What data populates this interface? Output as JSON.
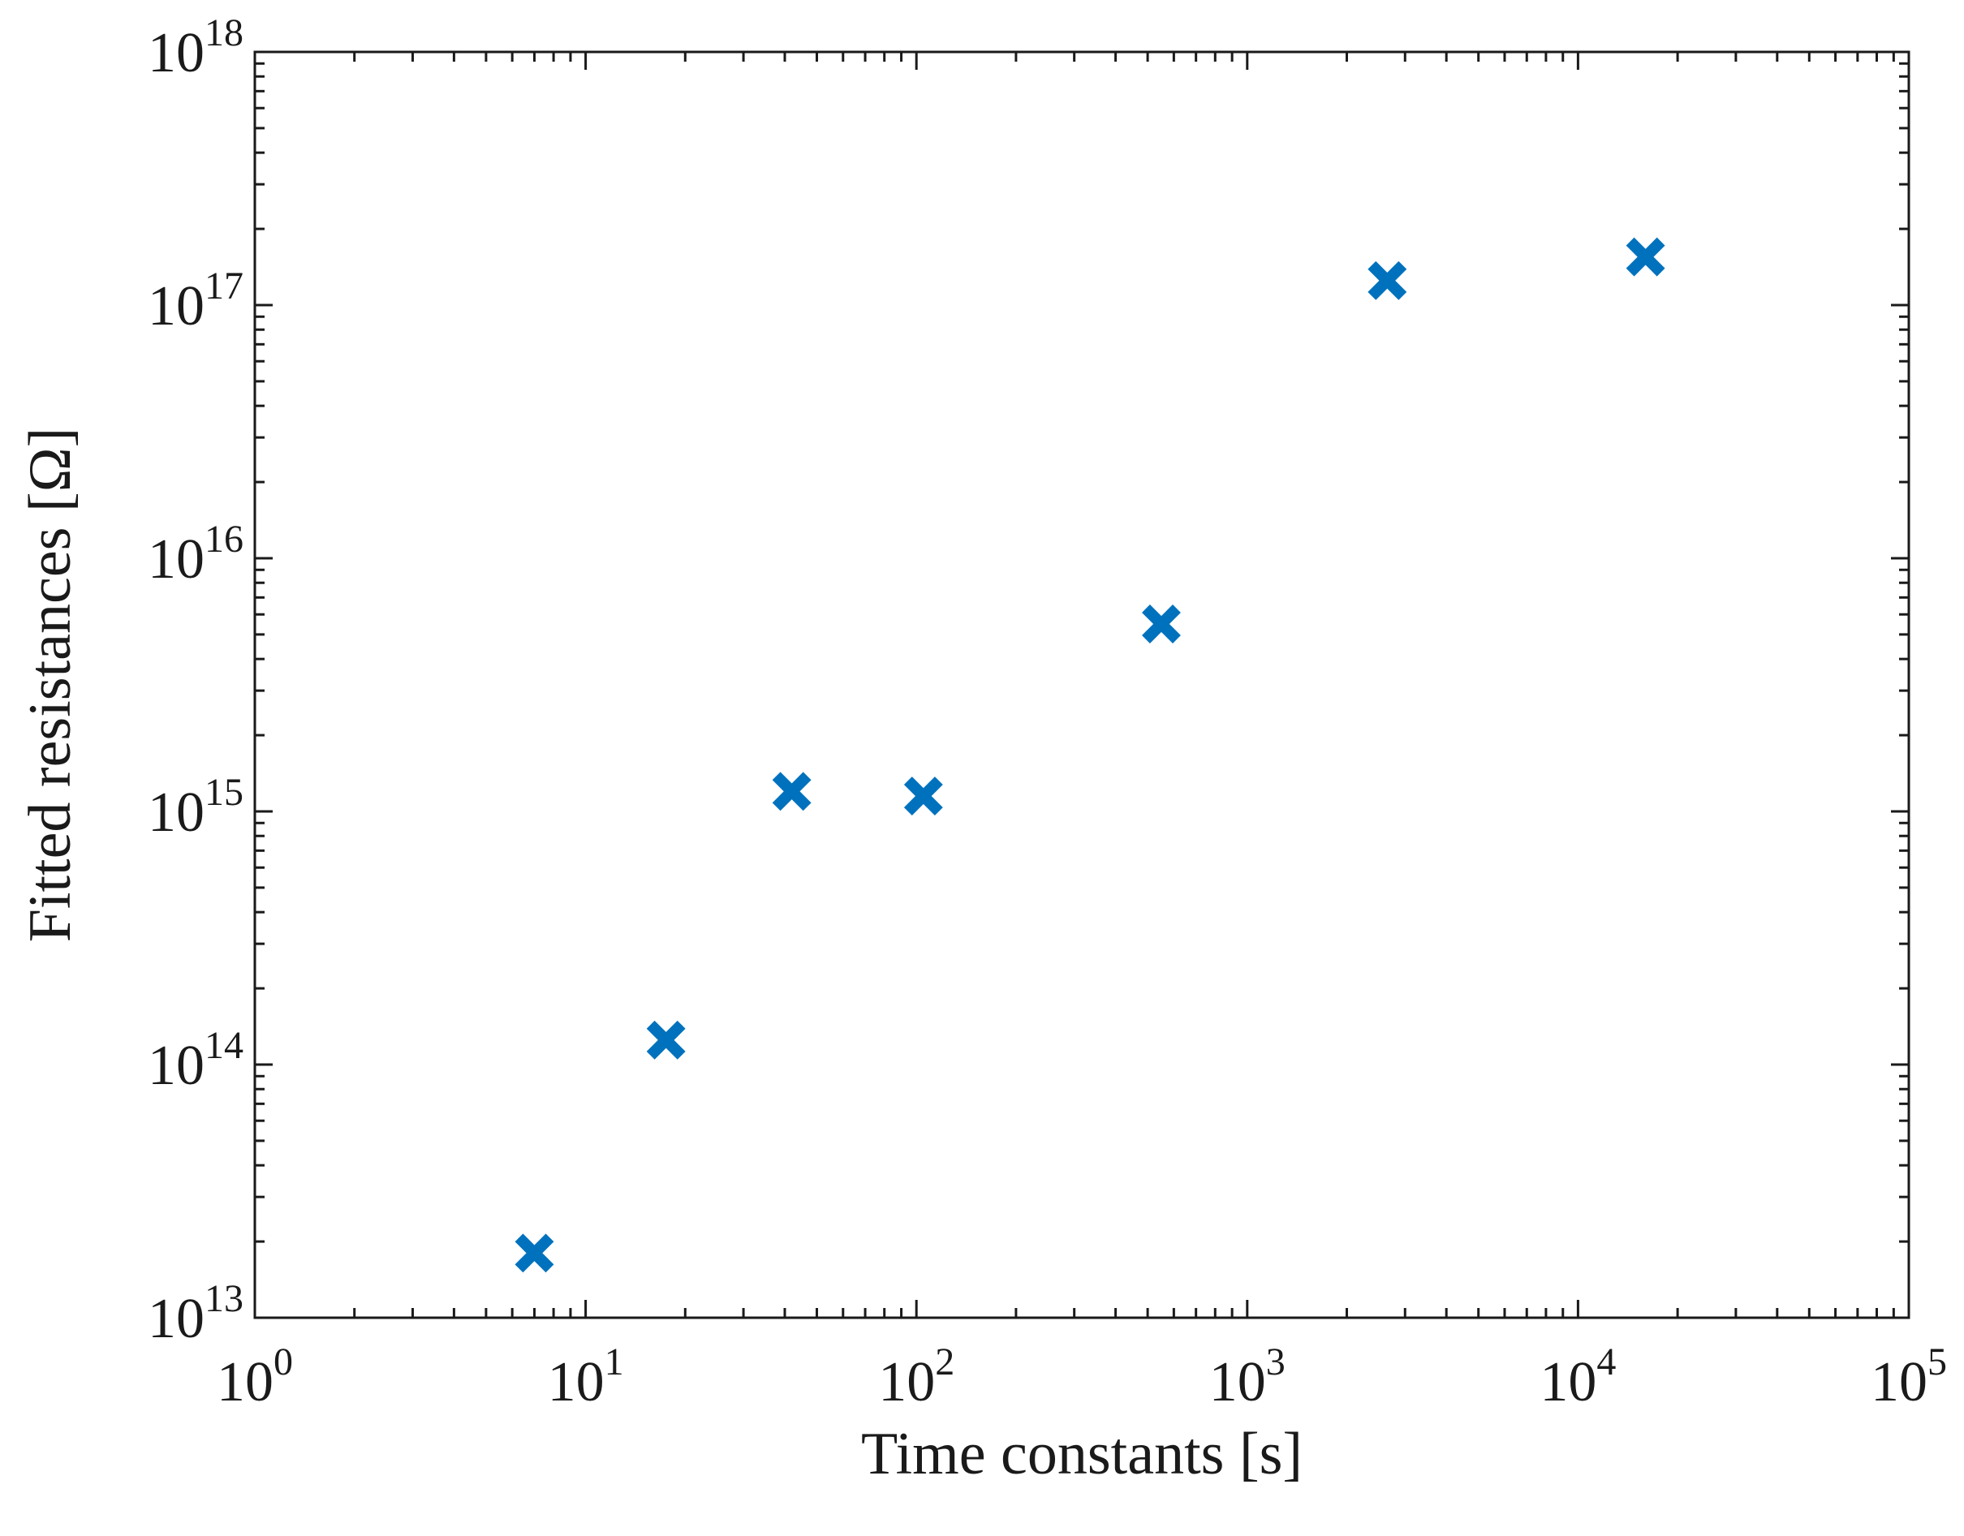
{
  "chart_data": {
    "type": "scatter",
    "title": "",
    "xlabel": "Time constants [s]",
    "ylabel": "Fitted resistances [Ω]",
    "xscale": "log",
    "yscale": "log",
    "xlim": [
      1,
      100000
    ],
    "ylim": [
      10000000000000.0,
      1e+18
    ],
    "grid": false,
    "legend": null,
    "marker": "x",
    "color": "#0072BD",
    "x_ticks": [
      {
        "base": "10",
        "exp": "0",
        "value": 1
      },
      {
        "base": "10",
        "exp": "1",
        "value": 10
      },
      {
        "base": "10",
        "exp": "2",
        "value": 100
      },
      {
        "base": "10",
        "exp": "3",
        "value": 1000
      },
      {
        "base": "10",
        "exp": "4",
        "value": 10000
      },
      {
        "base": "10",
        "exp": "5",
        "value": 100000
      }
    ],
    "y_ticks": [
      {
        "base": "10",
        "exp": "13",
        "value": 10000000000000.0
      },
      {
        "base": "10",
        "exp": "14",
        "value": 100000000000000.0
      },
      {
        "base": "10",
        "exp": "15",
        "value": 1000000000000000.0
      },
      {
        "base": "10",
        "exp": "16",
        "value": 1e+16
      },
      {
        "base": "10",
        "exp": "17",
        "value": 1e+17
      },
      {
        "base": "10",
        "exp": "18",
        "value": 1e+18
      }
    ],
    "series": [
      {
        "x": [
          7,
          17.5,
          42,
          105,
          550,
          2650,
          16000
        ],
        "y": [
          18000000000000.0,
          125000000000000.0,
          1200000000000000.0,
          1150000000000000.0,
          5500000000000000.0,
          1.25e+17,
          1.55e+17
        ]
      }
    ]
  }
}
